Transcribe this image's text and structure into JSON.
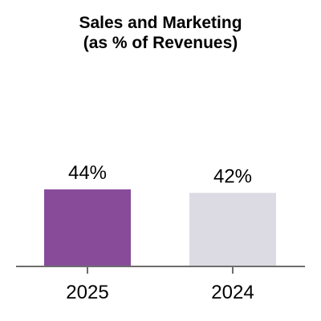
{
  "chart_data": {
    "type": "bar",
    "title_line1": "Sales and Marketing",
    "title_line2": "(as % of Revenues)",
    "xlabel": "",
    "ylabel": "",
    "categories": [
      "2025",
      "2024"
    ],
    "values": [
      44,
      42
    ],
    "value_labels": [
      "44%",
      "42%"
    ],
    "ylim": [
      0,
      100
    ],
    "grid": false,
    "legend": "none",
    "colors": [
      "#884b9a",
      "#dcdbe3"
    ],
    "axis_color": "#6d6d6d"
  }
}
